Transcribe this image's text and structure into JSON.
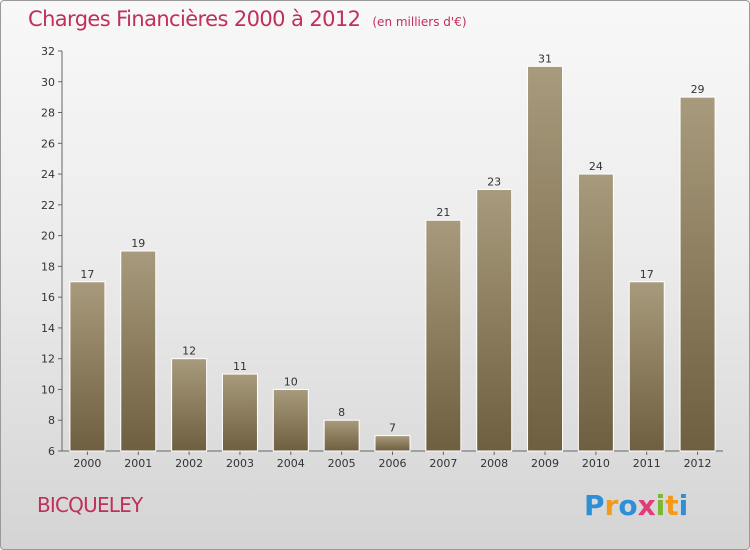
{
  "header": {
    "title": "Charges Financières 2000 à 2012",
    "subtitle": "(en milliers d'€)"
  },
  "commune": "BICQUELEY",
  "logo": {
    "text": "Proxiti",
    "colors": [
      "#2e8fd6",
      "#f39a1b",
      "#2e8fd6",
      "#e23a7a",
      "#7ab832",
      "#f39a1b",
      "#2e8fd6"
    ]
  },
  "chart_data": {
    "type": "bar",
    "title": "Charges Financières 2000 à 2012",
    "subtitle": "(en milliers d'€)",
    "categories": [
      "2000",
      "2001",
      "2002",
      "2003",
      "2004",
      "2005",
      "2006",
      "2007",
      "2008",
      "2009",
      "2010",
      "2011",
      "2012"
    ],
    "values": [
      17,
      19,
      12,
      11,
      10,
      8,
      7,
      21,
      23,
      31,
      24,
      17,
      29
    ],
    "ylim": [
      6,
      32
    ],
    "yticks": [
      6,
      8,
      10,
      12,
      14,
      16,
      18,
      20,
      22,
      24,
      26,
      28,
      30,
      32
    ],
    "grid": false,
    "legend": "none",
    "bar_color_top": "#a89a7c",
    "bar_color_bottom": "#6f5f41"
  }
}
